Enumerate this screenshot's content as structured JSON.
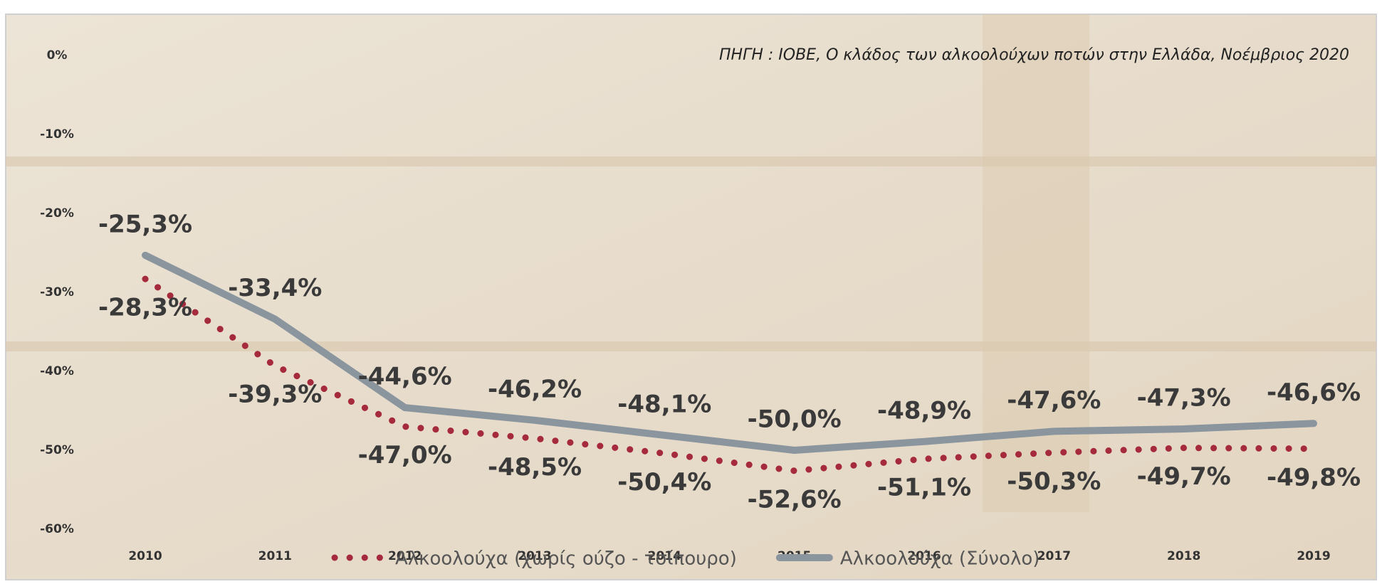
{
  "chart_data": {
    "type": "line",
    "source": "ΠΗΓΗ : ΙΟΒΕ, Ο κλάδος των αλκοολούχων ποτών στην Ελλάδα, Νοέμβριος 2020",
    "categories": [
      "2010",
      "2011",
      "2012",
      "2013",
      "2014",
      "2015",
      "2016",
      "2017",
      "2018",
      "2019"
    ],
    "series": [
      {
        "name": "Αλκοολούχα (χωρίς ούζο - τσίπουρο)",
        "color": "#a52a3c",
        "dash": "dotted",
        "values": [
          -28.3,
          -39.3,
          -47.0,
          -48.5,
          -50.4,
          -52.6,
          -51.1,
          -50.3,
          -49.7,
          -49.8
        ],
        "value_labels": [
          "-28,3%",
          "-39,3%",
          "-47,0%",
          "-48,5%",
          "-50,4%",
          "-52,6%",
          "-51,1%",
          "-50,3%",
          "-49,7%",
          "-49,8%"
        ]
      },
      {
        "name": "Αλκοολούχα (Σύνολο)",
        "color": "#8a959e",
        "dash": "solid",
        "values": [
          -25.3,
          -33.4,
          -44.6,
          -46.2,
          -48.1,
          -50.0,
          -48.9,
          -47.6,
          -47.3,
          -46.6
        ],
        "value_labels": [
          "-25,3%",
          "-33,4%",
          "-44,6%",
          "-46,2%",
          "-48,1%",
          "-50,0%",
          "-48,9%",
          "-47,6%",
          "-47,3%",
          "-46,6%"
        ]
      }
    ],
    "ylim": [
      -60,
      0
    ],
    "yticks": [
      {
        "value": 0,
        "label": "0%"
      },
      {
        "value": -10,
        "label": "-10%"
      },
      {
        "value": -20,
        "label": "-20%"
      },
      {
        "value": -30,
        "label": "-30%"
      },
      {
        "value": -40,
        "label": "-40%"
      },
      {
        "value": -50,
        "label": "-50%"
      },
      {
        "value": -60,
        "label": "-60%"
      }
    ],
    "legend": "bottom"
  }
}
